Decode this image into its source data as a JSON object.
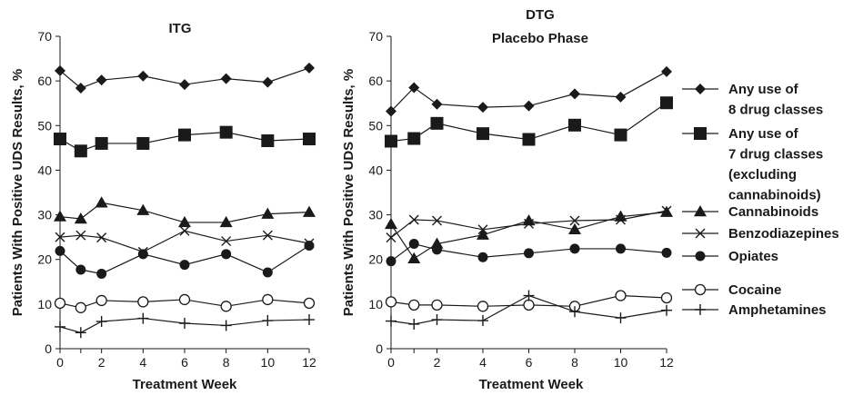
{
  "chart_data": [
    {
      "type": "line",
      "title": "ITG",
      "subtitle": "",
      "xlabel": "Treatment Week",
      "ylabel": "Patients With Positive UDS Results, %",
      "x": [
        0,
        1,
        2,
        4,
        6,
        8,
        10,
        12
      ],
      "xticks": [
        0,
        2,
        4,
        6,
        8,
        10,
        12
      ],
      "ylim": [
        0,
        70
      ],
      "yticks": [
        0,
        10,
        20,
        30,
        40,
        50,
        60,
        70
      ],
      "grid": false,
      "series": [
        {
          "name": "Any use of 8 drug classes",
          "values": [
            62.3,
            58.4,
            60.2,
            61.1,
            59.2,
            60.5,
            59.7,
            62.9
          ]
        },
        {
          "name": "Any use of 7 drug classes (excluding cannabinoids)",
          "values": [
            47,
            44.3,
            46,
            46,
            47.9,
            48.5,
            46.6,
            47
          ]
        },
        {
          "name": "Cannabinoids",
          "values": [
            29.6,
            29.1,
            32.7,
            31,
            28.3,
            28.3,
            30.2,
            30.6
          ]
        },
        {
          "name": "Benzodiazepines",
          "values": [
            25,
            25.4,
            24.9,
            21.7,
            26.4,
            24.1,
            25.4,
            23.6
          ]
        },
        {
          "name": "Opiates",
          "values": [
            21.9,
            17.7,
            16.8,
            21.2,
            18.8,
            21.2,
            17.1,
            23.1
          ]
        },
        {
          "name": "Cocaine",
          "values": [
            10.2,
            9.2,
            10.8,
            10.5,
            11,
            9.5,
            11,
            10.2
          ]
        },
        {
          "name": "Amphetamines",
          "values": [
            4.9,
            3.6,
            6.1,
            6.8,
            5.7,
            5.2,
            6.3,
            6.5
          ]
        }
      ]
    },
    {
      "type": "line",
      "title": "DTG",
      "subtitle": "Placebo Phase",
      "xlabel": "Treatment Week",
      "ylabel": "Patients With Positive UDS Results, %",
      "x": [
        0,
        1,
        2,
        4,
        6,
        8,
        10,
        12
      ],
      "xticks": [
        0,
        2,
        4,
        6,
        8,
        10,
        12
      ],
      "ylim": [
        0,
        70
      ],
      "yticks": [
        0,
        10,
        20,
        30,
        40,
        50,
        60,
        70
      ],
      "grid": false,
      "series": [
        {
          "name": "Any use of 8 drug classes",
          "values": [
            53.2,
            58.5,
            54.8,
            54.1,
            54.4,
            57.1,
            56.4,
            62.1
          ]
        },
        {
          "name": "Any use of 7 drug classes (excluding cannabinoids)",
          "values": [
            46.5,
            47.1,
            50.5,
            48.2,
            46.9,
            50.1,
            47.9,
            55.1
          ]
        },
        {
          "name": "Cannabinoids",
          "values": [
            27.9,
            20.2,
            23.5,
            25.5,
            28.7,
            26.7,
            29.6,
            30.6
          ]
        },
        {
          "name": "Benzodiazepines",
          "values": [
            24.9,
            28.9,
            28.7,
            26.7,
            28,
            28.7,
            28.9,
            30.9
          ]
        },
        {
          "name": "Opiates",
          "values": [
            19.6,
            23.5,
            22.2,
            20.5,
            21.4,
            22.4,
            22.4,
            21.5
          ]
        },
        {
          "name": "Cocaine",
          "values": [
            10.5,
            9.8,
            9.8,
            9.5,
            9.8,
            9.5,
            11.9,
            11.4
          ]
        },
        {
          "name": "Amphetamines",
          "values": [
            6.2,
            5.5,
            6.5,
            6.3,
            11.9,
            8.3,
            6.9,
            8.6
          ]
        }
      ]
    }
  ],
  "legend": {
    "placement": "right",
    "entries": [
      {
        "marker": "diamond-filled",
        "lines": [
          "Any use of",
          "8 drug classes"
        ]
      },
      {
        "marker": "square-filled",
        "lines": [
          "Any use of",
          "7 drug classes",
          "(excluding",
          "cannabinoids)"
        ]
      },
      {
        "marker": "triangle-filled",
        "lines": [
          "Cannabinoids"
        ]
      },
      {
        "marker": "x-cross",
        "lines": [
          "Benzodiazepines"
        ]
      },
      {
        "marker": "circle-filled",
        "lines": [
          "Opiates"
        ]
      },
      {
        "marker": "circle-open",
        "lines": [
          "Cocaine"
        ]
      },
      {
        "marker": "plus-cross",
        "lines": [
          "Amphetamines"
        ]
      }
    ]
  },
  "colors": {
    "ink": "#1a1a1a",
    "background": "#ffffff"
  }
}
